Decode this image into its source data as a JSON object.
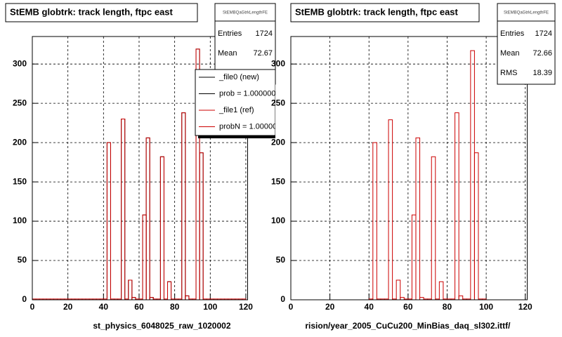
{
  "chart_data": [
    {
      "type": "histogram",
      "title": "StEMB globtrk: track length, ftpc east",
      "xlabel": "st_physics_6048025_raw_1020002",
      "bins": [
        0,
        2,
        4,
        6,
        8,
        10,
        12,
        14,
        16,
        18,
        20,
        22,
        24,
        26,
        28,
        30,
        32,
        34,
        36,
        38,
        40,
        42,
        44,
        46,
        48,
        50,
        52,
        54,
        56,
        58,
        60,
        62,
        64,
        66,
        68,
        70,
        72,
        74,
        76,
        78,
        80,
        82,
        84,
        86,
        88,
        90,
        92,
        94,
        96,
        98,
        100,
        102,
        104,
        106,
        108,
        110,
        112,
        114,
        116,
        118,
        120
      ],
      "series": [
        {
          "name": "_file0 (new)",
          "stat_label": "prob = 1.000000",
          "color": "#000000",
          "values": [
            0,
            0,
            0,
            0,
            0,
            0,
            0,
            0,
            0,
            0,
            0,
            0,
            0,
            0,
            0,
            0,
            0,
            0,
            0,
            0,
            0,
            200,
            0,
            0,
            0,
            230,
            0,
            25,
            3,
            0,
            0,
            108,
            206,
            3,
            0,
            0,
            182,
            0,
            23,
            0,
            0,
            0,
            238,
            5,
            0,
            0,
            319,
            187,
            0,
            0,
            0,
            0,
            0,
            0,
            0,
            0,
            0,
            0,
            0,
            0
          ]
        },
        {
          "name": "_file1 (ref)",
          "stat_label": "probN = 1.000000",
          "color": "#cc0000",
          "values": [
            1,
            1,
            1,
            1,
            1,
            1,
            1,
            1,
            1,
            1,
            1,
            1,
            1,
            1,
            1,
            1,
            1,
            1,
            1,
            1,
            1,
            200,
            1,
            1,
            1,
            230,
            1,
            25,
            3,
            1,
            1,
            108,
            206,
            3,
            1,
            1,
            182,
            1,
            23,
            1,
            1,
            1,
            238,
            5,
            1,
            1,
            319,
            187,
            1,
            1,
            1,
            1,
            1,
            1,
            1,
            1,
            1,
            1,
            1,
            1
          ]
        }
      ],
      "xlim": [
        0,
        121
      ],
      "ylim": [
        0,
        335
      ],
      "xticks": [
        0,
        20,
        40,
        60,
        80,
        100,
        120
      ],
      "yticks": [
        0,
        50,
        100,
        150,
        200,
        250,
        300
      ],
      "grid": true,
      "stats": {
        "title": "StEMBQaGtrkLengthFE",
        "rows": [
          [
            "Entries",
            "1724"
          ],
          [
            "Mean",
            "72.67"
          ]
        ]
      }
    },
    {
      "type": "histogram",
      "title": "StEMB globtrk: track length, ftpc east",
      "xlabel": "rision/year_2005_CuCu200_MinBias_daq_sl302.ittf/",
      "bins": [
        0,
        2,
        4,
        6,
        8,
        10,
        12,
        14,
        16,
        18,
        20,
        22,
        24,
        26,
        28,
        30,
        32,
        34,
        36,
        38,
        40,
        42,
        44,
        46,
        48,
        50,
        52,
        54,
        56,
        58,
        60,
        62,
        64,
        66,
        68,
        70,
        72,
        74,
        76,
        78,
        80,
        82,
        84,
        86,
        88,
        90,
        92,
        94,
        96,
        98,
        100,
        102,
        104,
        106,
        108,
        110,
        112,
        114,
        116,
        118,
        120
      ],
      "series": [
        {
          "color": "#cc0000",
          "values": [
            0,
            0,
            0,
            0,
            0,
            0,
            0,
            0,
            0,
            0,
            0,
            0,
            0,
            0,
            0,
            0,
            0,
            0,
            0,
            0,
            1,
            200,
            1,
            1,
            1,
            229,
            1,
            25,
            3,
            1,
            1,
            108,
            206,
            3,
            1,
            1,
            182,
            1,
            23,
            1,
            1,
            1,
            238,
            5,
            1,
            1,
            317,
            187,
            1,
            1,
            0,
            0,
            0,
            0,
            0,
            0,
            0,
            0,
            0,
            0
          ]
        }
      ],
      "xlim": [
        0,
        121
      ],
      "ylim": [
        0,
        335
      ],
      "xticks": [
        0,
        20,
        40,
        60,
        80,
        100,
        120
      ],
      "yticks": [
        0,
        50,
        100,
        150,
        200,
        250,
        300
      ],
      "grid": true,
      "stats": {
        "title": "StEMBQaGtrkLengthFE",
        "rows": [
          [
            "Entries",
            "1724"
          ],
          [
            "Mean",
            "72.66"
          ],
          [
            "RMS",
            "18.39"
          ]
        ]
      }
    }
  ]
}
